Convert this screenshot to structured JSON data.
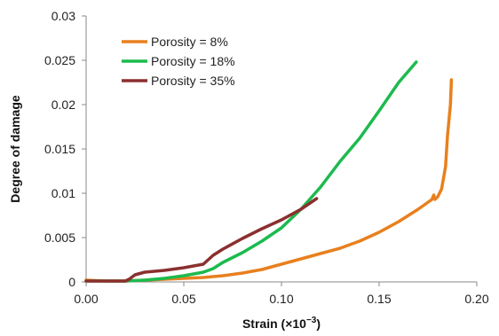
{
  "chart_data": {
    "type": "line",
    "xlabel": "Strain (×10",
    "xlabel_sup": "−3",
    "xlabel_end": ")",
    "ylabel": "Degree of damage",
    "xlim": [
      0,
      0.2
    ],
    "ylim": [
      0,
      0.03
    ],
    "x_ticks": [
      "0.00",
      "0.05",
      "0.10",
      "0.15",
      "0.20"
    ],
    "y_ticks": [
      "0",
      "0.005",
      "0.01",
      "0.015",
      "0.02",
      "0.025",
      "0.03"
    ],
    "grid": false,
    "legend_position": "top-left",
    "series": [
      {
        "name": "Porosity = 8%",
        "color": "#E8801F",
        "points": [
          [
            0,
            0.0002
          ],
          [
            0.01,
            0.0001
          ],
          [
            0.02,
            0.0001
          ],
          [
            0.03,
            0.0002
          ],
          [
            0.04,
            0.0003
          ],
          [
            0.05,
            0.0004
          ],
          [
            0.06,
            0.0005
          ],
          [
            0.07,
            0.0007
          ],
          [
            0.08,
            0.001
          ],
          [
            0.09,
            0.0014
          ],
          [
            0.1,
            0.002
          ],
          [
            0.11,
            0.0026
          ],
          [
            0.12,
            0.0032
          ],
          [
            0.13,
            0.0038
          ],
          [
            0.14,
            0.0046
          ],
          [
            0.15,
            0.0056
          ],
          [
            0.16,
            0.0068
          ],
          [
            0.17,
            0.0082
          ],
          [
            0.177,
            0.0093
          ],
          [
            0.178,
            0.0098
          ],
          [
            0.1785,
            0.0093
          ],
          [
            0.18,
            0.0096
          ],
          [
            0.182,
            0.0105
          ],
          [
            0.184,
            0.013
          ],
          [
            0.185,
            0.0165
          ],
          [
            0.1865,
            0.02
          ],
          [
            0.187,
            0.0228
          ]
        ]
      },
      {
        "name": "Porosity = 18%",
        "color": "#1DBA4E",
        "points": [
          [
            0,
            0.0001
          ],
          [
            0.02,
            0.0001
          ],
          [
            0.03,
            0.0002
          ],
          [
            0.04,
            0.0004
          ],
          [
            0.05,
            0.0007
          ],
          [
            0.06,
            0.0011
          ],
          [
            0.065,
            0.0015
          ],
          [
            0.07,
            0.0022
          ],
          [
            0.08,
            0.0033
          ],
          [
            0.09,
            0.0046
          ],
          [
            0.1,
            0.0061
          ],
          [
            0.11,
            0.0082
          ],
          [
            0.12,
            0.0107
          ],
          [
            0.13,
            0.0136
          ],
          [
            0.14,
            0.0162
          ],
          [
            0.15,
            0.0193
          ],
          [
            0.16,
            0.0225
          ],
          [
            0.169,
            0.0248
          ]
        ]
      },
      {
        "name": "Porosity = 35%",
        "color": "#8B2F2F",
        "points": [
          [
            0,
            0.0001
          ],
          [
            0.02,
            0.0001
          ],
          [
            0.022,
            0.0003
          ],
          [
            0.025,
            0.0008
          ],
          [
            0.03,
            0.0011
          ],
          [
            0.04,
            0.0013
          ],
          [
            0.05,
            0.0016
          ],
          [
            0.06,
            0.002
          ],
          [
            0.065,
            0.003
          ],
          [
            0.07,
            0.0037
          ],
          [
            0.08,
            0.0049
          ],
          [
            0.09,
            0.006
          ],
          [
            0.1,
            0.007
          ],
          [
            0.11,
            0.0082
          ],
          [
            0.118,
            0.0094
          ]
        ]
      }
    ]
  }
}
